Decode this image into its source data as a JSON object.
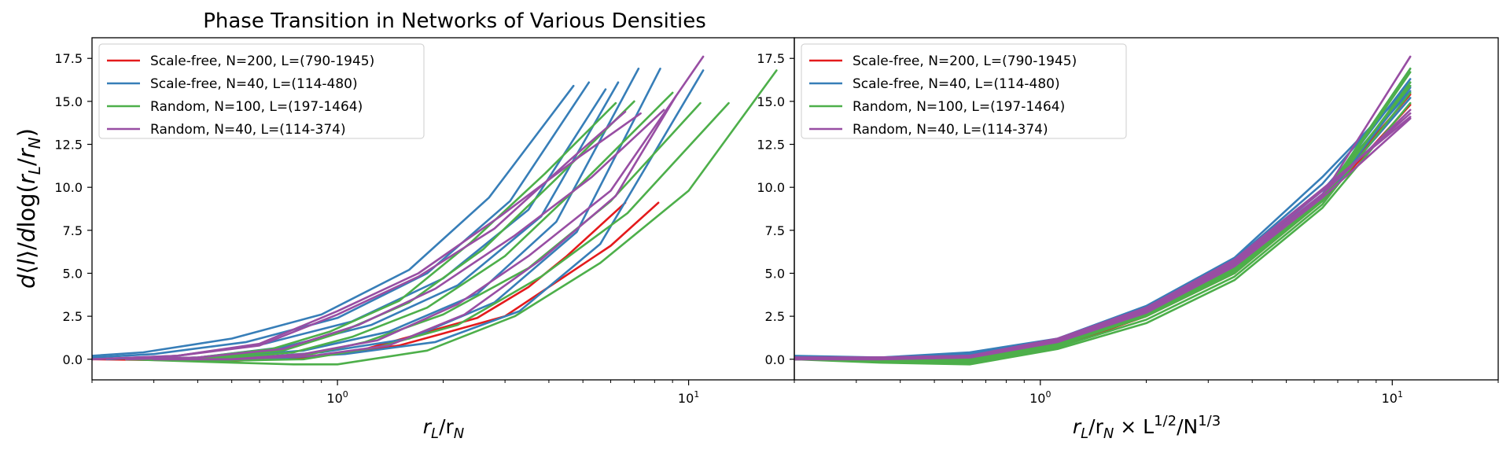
{
  "chart_data": [
    {
      "type": "line",
      "title": "Phase Transition in Networks of Various Densities",
      "xlabel_main": "r",
      "xlabel_sub1": "L",
      "xlabel_sep": "/r",
      "xlabel_sub2": "N",
      "ylabel": "d⟨l⟩/dlog(r_L/r_N)",
      "xscale": "log",
      "xlim": [
        0.2,
        20
      ],
      "ylim": [
        -1.2,
        18.7
      ],
      "grid": false,
      "legend_position": "upper-left",
      "x_ticks": [
        "10^0",
        "10^1"
      ],
      "y_ticks": [
        "0.0",
        "2.5",
        "5.0",
        "7.5",
        "10.0",
        "12.5",
        "15.0",
        "17.5"
      ],
      "legend": [
        {
          "label": "Scale-free, N=200, L=(790-1945)",
          "color": "#e41a1c"
        },
        {
          "label": "Scale-free, N=40, L=(114-480)",
          "color": "#377eb8"
        },
        {
          "label": "Random, N=100, L=(197-1464)",
          "color": "#4daf4a"
        },
        {
          "label": "Random, N=40, L=(114-374)",
          "color": "#984ea3"
        }
      ],
      "series": [
        {
          "group": 0,
          "color": "#e41a1c",
          "x": [
            0.2,
            0.5,
            0.8,
            1.2,
            1.6,
            2.5,
            3.5,
            4.5,
            6.6
          ],
          "y": [
            0.0,
            -0.1,
            0.1,
            0.6,
            1.3,
            2.4,
            4.2,
            6.0,
            9.1
          ]
        },
        {
          "group": 0,
          "color": "#e41a1c",
          "x": [
            0.25,
            0.6,
            1.0,
            1.5,
            2.0,
            3.0,
            4.5,
            6.0,
            8.2
          ],
          "y": [
            0.0,
            0.0,
            0.3,
            0.8,
            1.5,
            2.5,
            4.9,
            6.6,
            9.1
          ]
        },
        {
          "group": 1,
          "color": "#377eb8",
          "x": [
            0.2,
            0.28,
            0.5,
            0.9,
            1.6,
            2.7,
            4.7
          ],
          "y": [
            0.2,
            0.4,
            1.2,
            2.6,
            5.2,
            9.4,
            15.9
          ]
        },
        {
          "group": 1,
          "color": "#377eb8",
          "x": [
            0.2,
            0.3,
            0.55,
            1.0,
            1.8,
            3.1,
            5.2
          ],
          "y": [
            0.1,
            0.3,
            1.0,
            2.4,
            5.0,
            9.2,
            16.1
          ]
        },
        {
          "group": 1,
          "color": "#377eb8",
          "x": [
            0.22,
            0.35,
            0.62,
            1.1,
            2.0,
            3.5,
            5.8
          ],
          "y": [
            0.0,
            0.2,
            0.9,
            2.2,
            4.7,
            8.7,
            15.7
          ]
        },
        {
          "group": 1,
          "color": "#377eb8",
          "x": [
            0.25,
            0.4,
            0.7,
            1.25,
            2.2,
            3.8,
            6.3
          ],
          "y": [
            0.0,
            0.1,
            0.7,
            2.0,
            4.3,
            8.3,
            16.1
          ]
        },
        {
          "group": 1,
          "color": "#377eb8",
          "x": [
            0.28,
            0.45,
            0.8,
            1.4,
            2.5,
            4.2,
            7.2
          ],
          "y": [
            0.0,
            0.1,
            0.5,
            1.6,
            3.8,
            8.0,
            16.9
          ]
        },
        {
          "group": 1,
          "color": "#377eb8",
          "x": [
            0.3,
            0.5,
            0.9,
            1.6,
            2.8,
            4.8,
            8.3
          ],
          "y": [
            0.0,
            0.0,
            0.4,
            1.2,
            3.3,
            7.4,
            16.9
          ]
        },
        {
          "group": 1,
          "color": "#377eb8",
          "x": [
            0.35,
            0.6,
            1.05,
            1.9,
            3.3,
            5.6,
            11.0
          ],
          "y": [
            0.0,
            0.0,
            0.3,
            1.0,
            2.8,
            6.7,
            16.8
          ]
        },
        {
          "group": 2,
          "color": "#4daf4a",
          "x": [
            0.25,
            0.5,
            0.75,
            1.0,
            1.8,
            3.2,
            5.6,
            10.0,
            17.8
          ],
          "y": [
            0.0,
            -0.2,
            -0.3,
            -0.3,
            0.5,
            2.5,
            5.6,
            9.8,
            16.8
          ]
        },
        {
          "group": 2,
          "color": "#4daf4a",
          "x": [
            0.25,
            0.45,
            0.8,
            1.3,
            2.2,
            3.8,
            6.7,
            13.0
          ],
          "y": [
            0.0,
            -0.1,
            0.0,
            0.7,
            2.0,
            4.8,
            8.5,
            14.9
          ]
        },
        {
          "group": 2,
          "color": "#4daf4a",
          "x": [
            0.25,
            0.45,
            0.8,
            1.2,
            2.0,
            3.5,
            6.0,
            10.8
          ],
          "y": [
            0.0,
            -0.1,
            0.2,
            1.0,
            2.6,
            5.3,
            9.2,
            14.9
          ]
        },
        {
          "group": 2,
          "color": "#4daf4a",
          "x": [
            0.25,
            0.45,
            0.75,
            1.1,
            1.8,
            3.0,
            5.0,
            9.0
          ],
          "y": [
            0.0,
            0.0,
            0.4,
            1.3,
            3.0,
            6.0,
            10.3,
            15.5
          ]
        },
        {
          "group": 2,
          "color": "#4daf4a",
          "x": [
            0.25,
            0.45,
            0.7,
            1.0,
            1.6,
            2.6,
            4.2,
            7.0
          ],
          "y": [
            0.0,
            0.1,
            0.5,
            1.5,
            3.3,
            6.4,
            10.5,
            15.0
          ]
        },
        {
          "group": 2,
          "color": "#4daf4a",
          "x": [
            0.25,
            0.4,
            0.65,
            0.95,
            1.5,
            2.4,
            3.9,
            6.2
          ],
          "y": [
            0.0,
            0.1,
            0.6,
            1.6,
            3.4,
            6.8,
            10.8,
            14.9
          ]
        },
        {
          "group": 3,
          "color": "#984ea3",
          "x": [
            0.2,
            0.35,
            0.6,
            1.0,
            1.7,
            2.8,
            4.6,
            6.6
          ],
          "y": [
            0.0,
            0.2,
            0.8,
            2.6,
            4.8,
            7.6,
            11.6,
            14.4
          ]
        },
        {
          "group": 3,
          "color": "#984ea3",
          "x": [
            0.2,
            0.35,
            0.6,
            1.0,
            1.7,
            2.9,
            4.9,
            7.3
          ],
          "y": [
            0.0,
            0.2,
            0.9,
            2.8,
            5.0,
            8.3,
            11.8,
            14.3
          ]
        },
        {
          "group": 3,
          "color": "#984ea3",
          "x": [
            0.25,
            0.4,
            0.7,
            1.15,
            1.9,
            3.2,
            5.3,
            8.5
          ],
          "y": [
            0.0,
            0.1,
            0.6,
            2.0,
            4.1,
            7.2,
            10.6,
            14.5
          ]
        },
        {
          "group": 3,
          "color": "#984ea3",
          "x": [
            0.3,
            0.5,
            0.8,
            1.3,
            2.2,
            3.5,
            6.0,
            11.0
          ],
          "y": [
            0.0,
            0.0,
            0.3,
            1.1,
            3.2,
            6.0,
            9.8,
            17.6
          ]
        },
        {
          "group": 3,
          "color": "#984ea3",
          "x": [
            0.3,
            0.5,
            0.85,
            1.4,
            2.3,
            3.8,
            6.2,
            9.2
          ],
          "y": [
            0.0,
            0.0,
            0.2,
            0.8,
            2.6,
            5.8,
            9.5,
            15.3
          ]
        }
      ]
    },
    {
      "type": "line",
      "title": "",
      "xlabel_main": "r",
      "xlabel_sub1": "L",
      "xlabel_sep": "/r",
      "xlabel_sub2": "N",
      "xlabel_times": " × L",
      "xlabel_sup1": "1/2",
      "xlabel_slash": "/N",
      "xlabel_sup2": "1/3",
      "xscale": "log",
      "xlim": [
        0.2,
        20
      ],
      "ylim": [
        -1.2,
        18.7
      ],
      "grid": false,
      "legend_position": "upper-left",
      "x_ticks": [
        "10^0",
        "10^1"
      ],
      "y_ticks": [
        "0.0",
        "2.5",
        "5.0",
        "7.5",
        "10.0",
        "12.5",
        "15.0",
        "17.5"
      ],
      "legend": [
        {
          "label": "Scale-free, N=200, L=(790-1945)",
          "color": "#e41a1c"
        },
        {
          "label": "Scale-free, N=40, L=(114-480)",
          "color": "#377eb8"
        },
        {
          "label": "Random, N=100, L=(197-1464)",
          "color": "#4daf4a"
        },
        {
          "label": "Random, N=40, L=(114-374)",
          "color": "#984ea3"
        }
      ],
      "series": [
        {
          "group": 0,
          "color": "#e41a1c",
          "x": [
            0.2,
            0.35,
            0.63,
            1.12,
            2.0,
            3.56,
            6.33,
            11.25
          ],
          "y": [
            0.0,
            -0.1,
            -0.1,
            0.7,
            2.5,
            5.0,
            9.2,
            14.8
          ]
        },
        {
          "group": 0,
          "color": "#e41a1c",
          "x": [
            0.2,
            0.35,
            0.63,
            1.12,
            2.0,
            3.56,
            6.33,
            11.25
          ],
          "y": [
            0.0,
            0.0,
            0.0,
            0.9,
            2.7,
            5.3,
            9.4,
            15.4
          ]
        },
        {
          "group": 1,
          "color": "#377eb8",
          "x": [
            0.2,
            0.35,
            0.63,
            1.12,
            2.0,
            3.56,
            6.33,
            11.25
          ],
          "y": [
            0.2,
            0.1,
            0.4,
            1.2,
            3.1,
            5.9,
            10.6,
            15.9
          ]
        },
        {
          "group": 1,
          "color": "#377eb8",
          "x": [
            0.2,
            0.35,
            0.63,
            1.12,
            2.0,
            3.56,
            6.33,
            11.25
          ],
          "y": [
            0.1,
            0.1,
            0.3,
            1.1,
            3.0,
            5.8,
            10.2,
            16.1
          ]
        },
        {
          "group": 1,
          "color": "#377eb8",
          "x": [
            0.2,
            0.35,
            0.63,
            1.12,
            2.0,
            3.56,
            6.33,
            11.25
          ],
          "y": [
            0.0,
            0.0,
            0.2,
            1.0,
            2.9,
            5.6,
            9.8,
            15.6
          ]
        },
        {
          "group": 1,
          "color": "#377eb8",
          "x": [
            0.2,
            0.35,
            0.63,
            1.12,
            2.0,
            3.56,
            6.33,
            11.25
          ],
          "y": [
            0.0,
            0.0,
            0.2,
            0.9,
            2.8,
            5.5,
            9.6,
            16.3
          ]
        },
        {
          "group": 1,
          "color": "#377eb8",
          "x": [
            0.2,
            0.35,
            0.63,
            1.12,
            2.0,
            3.56,
            6.33,
            11.25
          ],
          "y": [
            0.0,
            0.0,
            0.1,
            0.9,
            2.7,
            5.4,
            9.4,
            16.9
          ]
        },
        {
          "group": 1,
          "color": "#377eb8",
          "x": [
            0.2,
            0.35,
            0.63,
            1.12,
            2.0,
            3.56,
            6.33,
            11.25
          ],
          "y": [
            0.0,
            0.0,
            0.1,
            0.8,
            2.6,
            5.3,
            9.3,
            15.2
          ]
        },
        {
          "group": 1,
          "color": "#377eb8",
          "x": [
            0.2,
            0.35,
            0.63,
            1.12,
            2.0,
            3.56,
            6.33,
            11.25
          ],
          "y": [
            0.0,
            0.0,
            0.1,
            0.8,
            2.6,
            5.2,
            9.2,
            15.8
          ]
        },
        {
          "group": 2,
          "color": "#4daf4a",
          "x": [
            0.2,
            0.35,
            0.63,
            1.12,
            2.0,
            3.56,
            6.33,
            11.25
          ],
          "y": [
            0.0,
            -0.2,
            -0.3,
            0.6,
            2.1,
            4.6,
            8.8,
            14.9
          ]
        },
        {
          "group": 2,
          "color": "#4daf4a",
          "x": [
            0.2,
            0.35,
            0.63,
            1.12,
            2.0,
            3.56,
            6.33,
            11.25
          ],
          "y": [
            0.0,
            -0.1,
            -0.2,
            0.7,
            2.3,
            4.8,
            9.0,
            15.5
          ]
        },
        {
          "group": 2,
          "color": "#4daf4a",
          "x": [
            0.2,
            0.35,
            0.63,
            1.12,
            2.0,
            3.56,
            6.33,
            11.25
          ],
          "y": [
            0.0,
            -0.1,
            -0.1,
            0.8,
            2.5,
            5.0,
            9.2,
            16.1
          ]
        },
        {
          "group": 2,
          "color": "#4daf4a",
          "x": [
            0.2,
            0.35,
            0.63,
            1.12,
            2.0,
            3.56,
            6.33,
            11.25
          ],
          "y": [
            0.0,
            0.0,
            0.0,
            0.9,
            2.6,
            5.1,
            9.3,
            16.7
          ]
        },
        {
          "group": 2,
          "color": "#4daf4a",
          "x": [
            0.2,
            0.35,
            0.63,
            1.12,
            2.0,
            3.56,
            6.33,
            11.25
          ],
          "y": [
            0.0,
            0.0,
            0.1,
            1.0,
            2.7,
            5.2,
            9.4,
            16.9
          ]
        },
        {
          "group": 2,
          "color": "#4daf4a",
          "x": [
            0.2,
            0.35,
            0.63,
            1.12,
            2.0,
            3.56,
            6.33,
            11.25
          ],
          "y": [
            0.0,
            0.0,
            0.1,
            1.0,
            2.8,
            5.3,
            9.5,
            15.9
          ]
        },
        {
          "group": 3,
          "color": "#984ea3",
          "x": [
            0.2,
            0.35,
            0.63,
            1.12,
            2.0,
            3.56,
            6.33,
            11.25
          ],
          "y": [
            0.1,
            0.1,
            0.2,
            1.2,
            3.0,
            5.8,
            9.9,
            14.1
          ]
        },
        {
          "group": 3,
          "color": "#984ea3",
          "x": [
            0.2,
            0.35,
            0.63,
            1.12,
            2.0,
            3.56,
            6.33,
            11.25
          ],
          "y": [
            0.1,
            0.1,
            0.2,
            1.1,
            2.9,
            5.7,
            9.8,
            14.3
          ]
        },
        {
          "group": 3,
          "color": "#984ea3",
          "x": [
            0.2,
            0.35,
            0.63,
            1.12,
            2.0,
            3.56,
            6.33,
            11.25
          ],
          "y": [
            0.0,
            0.1,
            0.2,
            1.1,
            2.9,
            5.6,
            9.6,
            14.5
          ]
        },
        {
          "group": 3,
          "color": "#984ea3",
          "x": [
            0.2,
            0.35,
            0.63,
            1.12,
            2.0,
            3.56,
            6.33,
            11.25
          ],
          "y": [
            0.0,
            0.0,
            0.1,
            1.0,
            2.8,
            5.5,
            9.5,
            17.6
          ]
        },
        {
          "group": 3,
          "color": "#984ea3",
          "x": [
            0.2,
            0.35,
            0.63,
            1.12,
            2.0,
            3.56,
            6.33,
            11.25
          ],
          "y": [
            0.0,
            0.0,
            0.1,
            1.0,
            2.7,
            5.4,
            9.4,
            14.0
          ]
        }
      ]
    }
  ]
}
